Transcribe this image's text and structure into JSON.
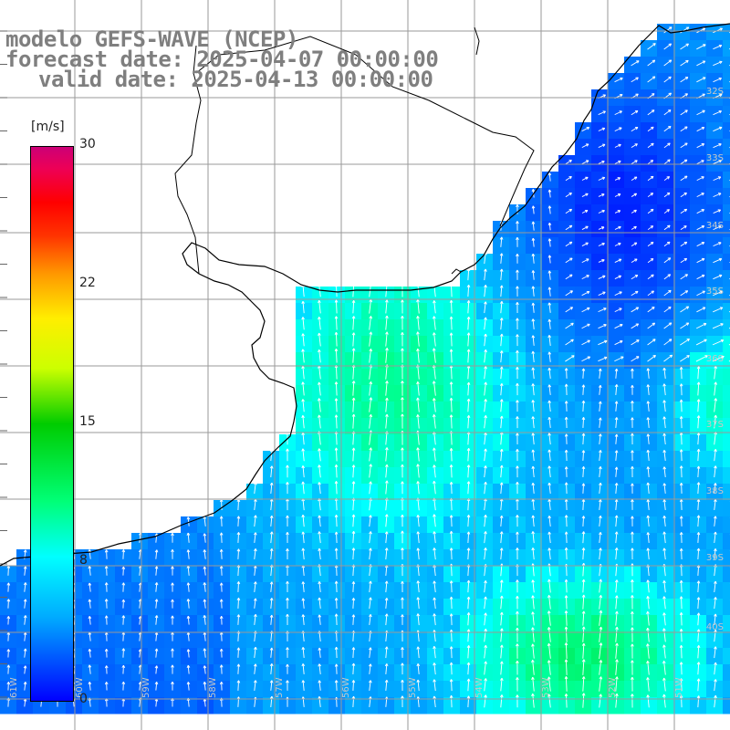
{
  "title": {
    "line1": "modelo GEFS-WAVE (NCEP)",
    "line2": "forecast date: 2025-04-07 00:00:00",
    "line3": "valid date: 2025-04-13 00:00:00"
  },
  "colorbar": {
    "unit": "[m/s]",
    "ticks": [
      "30",
      "22",
      "15",
      "8",
      "0"
    ],
    "tick_values": [
      30,
      22,
      15,
      8,
      0
    ],
    "min": 0,
    "max": 30
  },
  "colors": {
    "land": "#ffffff",
    "grid": "#a0a0a0",
    "coast": "#000000",
    "arrows": "#ffffff",
    "label_gray": "#7f7f7f"
  },
  "latitude_labels": [
    "32S",
    "33S",
    "34S",
    "35S",
    "36S",
    "37S",
    "38S",
    "39S",
    "40S"
  ],
  "longitude_labels": [
    "61W",
    "60W",
    "59W",
    "58W",
    "57W",
    "56W",
    "55W",
    "54W",
    "53W",
    "52W",
    "51W"
  ]
}
